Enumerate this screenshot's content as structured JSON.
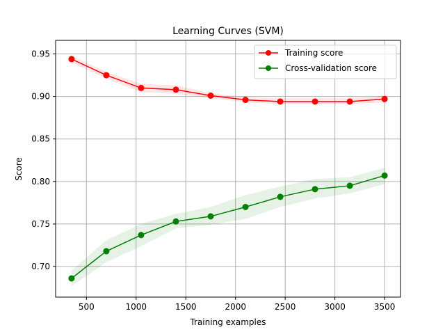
{
  "chart_data": {
    "type": "line",
    "title": "Learning Curves (SVM)",
    "xlabel": "Training examples",
    "ylabel": "Score",
    "xlim": [
      190,
      3660
    ],
    "ylim": [
      0.664,
      0.966
    ],
    "xticks": [
      500,
      1000,
      1500,
      2000,
      2500,
      3000,
      3500
    ],
    "xtick_labels": [
      "500",
      "1000",
      "1500",
      "2000",
      "2500",
      "3000",
      "3500"
    ],
    "yticks": [
      0.7,
      0.75,
      0.8,
      0.85,
      0.9,
      0.95
    ],
    "ytick_labels": [
      "0.70",
      "0.75",
      "0.80",
      "0.85",
      "0.90",
      "0.95"
    ],
    "grid": true,
    "legend_position": "top-right",
    "x": [
      350,
      700,
      1050,
      1400,
      1750,
      2100,
      2450,
      2800,
      3150,
      3500
    ],
    "series": [
      {
        "name": "Training score",
        "color": "#ff0000",
        "band_color": "#ff0000",
        "values": [
          0.944,
          0.925,
          0.91,
          0.908,
          0.901,
          0.896,
          0.894,
          0.894,
          0.894,
          0.897
        ],
        "lower": [
          0.94,
          0.921,
          0.905,
          0.903,
          0.898,
          0.893,
          0.891,
          0.891,
          0.891,
          0.893
        ],
        "upper": [
          0.948,
          0.929,
          0.915,
          0.913,
          0.904,
          0.899,
          0.898,
          0.898,
          0.898,
          0.901
        ]
      },
      {
        "name": "Cross-validation score",
        "color": "#008000",
        "band_color": "#008000",
        "values": [
          0.686,
          0.718,
          0.737,
          0.753,
          0.759,
          0.77,
          0.782,
          0.791,
          0.795,
          0.807
        ],
        "lower": [
          0.677,
          0.705,
          0.724,
          0.745,
          0.749,
          0.756,
          0.77,
          0.78,
          0.786,
          0.797
        ],
        "upper": [
          0.695,
          0.731,
          0.75,
          0.762,
          0.77,
          0.784,
          0.794,
          0.803,
          0.805,
          0.816
        ]
      }
    ]
  }
}
